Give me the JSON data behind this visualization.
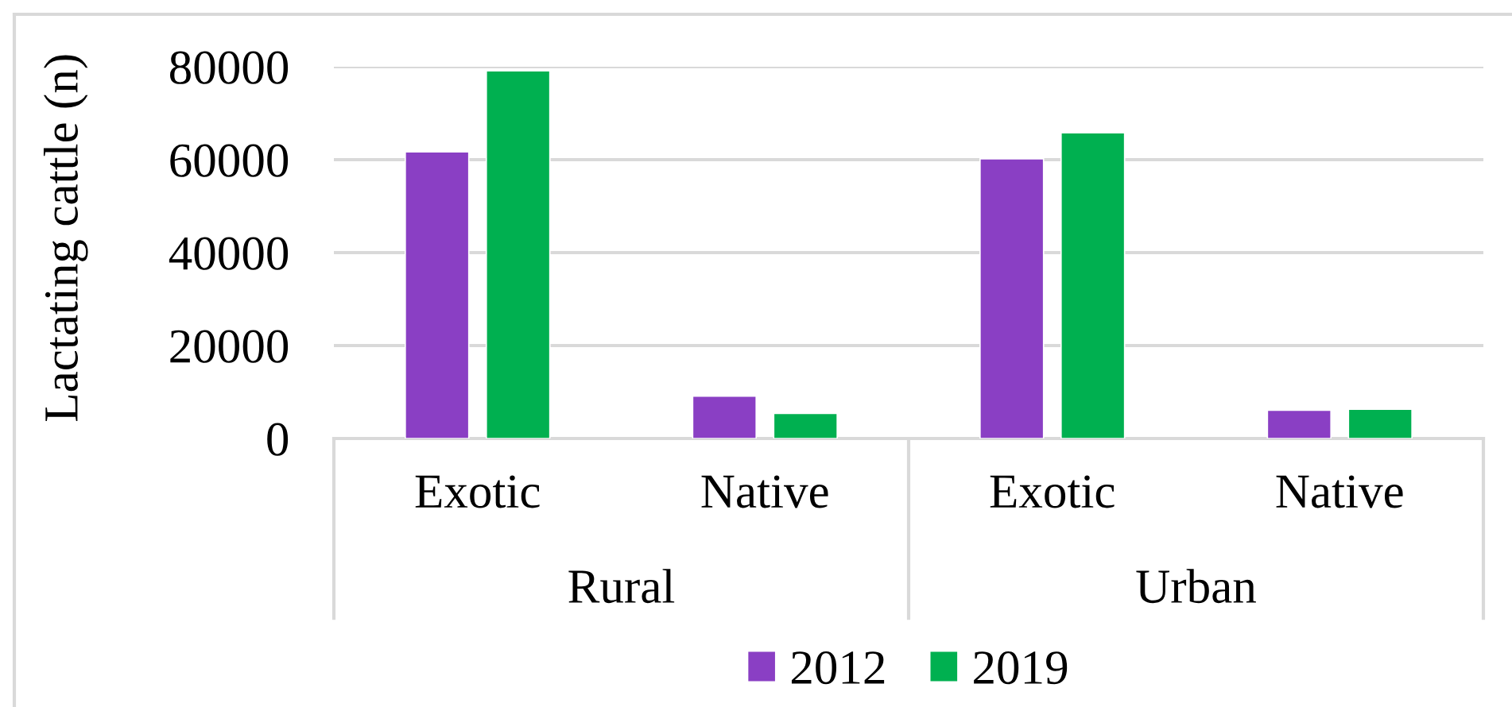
{
  "chart_data": {
    "type": "bar",
    "ylabel": "Lactating cattle (n)",
    "categories": [
      "Exotic",
      "Native",
      "Exotic",
      "Native"
    ],
    "series": [
      {
        "name": "2012",
        "color": "#8a3fc4",
        "values": [
          61700,
          9100,
          60200,
          6100
        ]
      },
      {
        "name": "2019",
        "color": "#00b050",
        "values": [
          79100,
          5400,
          65800,
          6300
        ]
      }
    ],
    "ylim": [
      0,
      80000
    ],
    "yticks": [
      0,
      20000,
      40000,
      60000,
      80000
    ],
    "grid": "y",
    "legend": "bottom",
    "annotations": [
      "Rural",
      "Urban"
    ]
  }
}
